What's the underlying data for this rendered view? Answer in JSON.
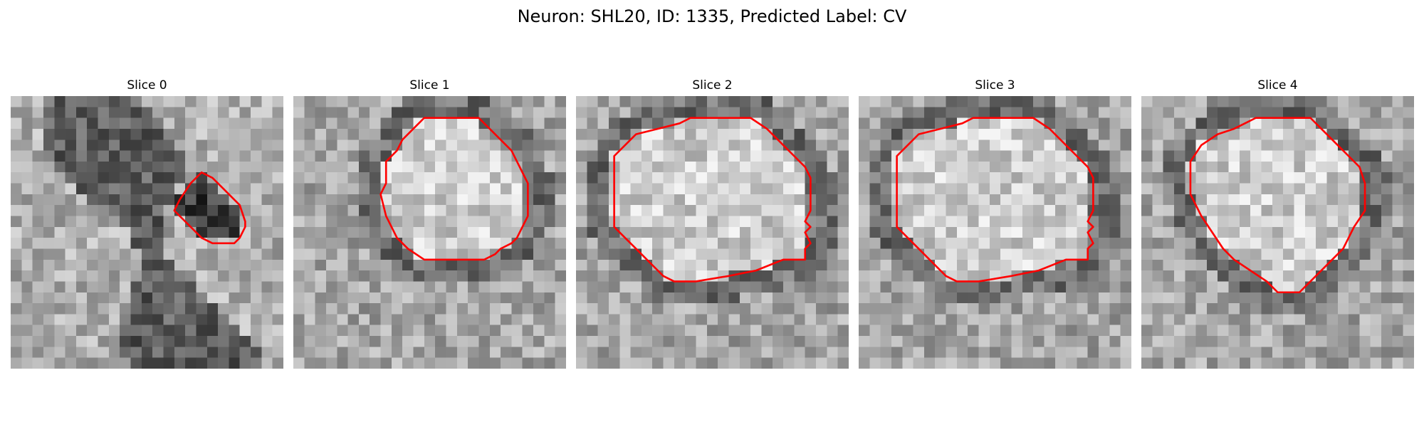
{
  "figure": {
    "title": "Neuron: SHL20, ID: 1335, Predicted Label: CV",
    "outline_color": "#ff0000",
    "colormap": "gray"
  },
  "panels": [
    {
      "title": "Slice 0",
      "contour": [
        [
          17.5,
          7
        ],
        [
          18.5,
          7.5
        ],
        [
          19.5,
          8.5
        ],
        [
          20.5,
          9.5
        ],
        [
          21,
          10
        ],
        [
          21.5,
          11.5
        ],
        [
          21.5,
          12
        ],
        [
          21,
          13
        ],
        [
          20.5,
          13.5
        ],
        [
          18.5,
          13.5
        ],
        [
          17.5,
          13
        ],
        [
          16.5,
          12
        ],
        [
          15.5,
          11
        ],
        [
          15,
          10.5
        ],
        [
          15.5,
          9.5
        ],
        [
          16.5,
          8
        ]
      ]
    },
    {
      "title": "Slice 1",
      "contour": [
        [
          12,
          2
        ],
        [
          17,
          2
        ],
        [
          19.5,
          4.5
        ],
        [
          20,
          5
        ],
        [
          20.5,
          6
        ],
        [
          21,
          7
        ],
        [
          21.5,
          8
        ],
        [
          21.5,
          11
        ],
        [
          21,
          12
        ],
        [
          20.5,
          13
        ],
        [
          20,
          13.5
        ],
        [
          19,
          14
        ],
        [
          18.5,
          14.5
        ],
        [
          17.5,
          15
        ],
        [
          12,
          15
        ],
        [
          10.5,
          14
        ],
        [
          9.5,
          13
        ],
        [
          9,
          12
        ],
        [
          8.5,
          11
        ],
        [
          8,
          9
        ],
        [
          8.5,
          8
        ],
        [
          8.5,
          6
        ],
        [
          9.5,
          5
        ],
        [
          10,
          4
        ],
        [
          11,
          3
        ]
      ]
    },
    {
      "title": "Slice 3",
      "contour": [
        [
          10.5,
          2
        ],
        [
          16,
          2
        ],
        [
          17.5,
          3
        ],
        [
          19,
          4.5
        ],
        [
          20,
          5.5
        ],
        [
          21,
          6.5
        ],
        [
          21.5,
          7.5
        ],
        [
          21.5,
          10.5
        ],
        [
          21,
          11.5
        ],
        [
          21.5,
          12
        ],
        [
          21,
          12.5
        ],
        [
          21.5,
          13.5
        ],
        [
          21,
          14
        ],
        [
          21,
          15
        ],
        [
          19,
          15
        ],
        [
          16.5,
          16
        ],
        [
          14,
          16.5
        ],
        [
          11,
          17
        ],
        [
          9,
          17
        ],
        [
          8,
          16.5
        ],
        [
          7.5,
          16
        ],
        [
          6.5,
          15
        ],
        [
          5.5,
          14
        ],
        [
          4.5,
          13
        ],
        [
          3.5,
          12
        ],
        [
          3.5,
          5.5
        ],
        [
          4.5,
          4.5
        ],
        [
          5.5,
          3.5
        ],
        [
          7.5,
          3
        ],
        [
          9.5,
          2.5
        ]
      ]
    },
    {
      "title": "Slice 2",
      "contour": [
        [
          10.5,
          2
        ],
        [
          16,
          2
        ],
        [
          17.5,
          3
        ],
        [
          19,
          4.5
        ],
        [
          20,
          5.5
        ],
        [
          21,
          6.5
        ],
        [
          21.5,
          7.5
        ],
        [
          21.5,
          10.5
        ],
        [
          21,
          11.5
        ],
        [
          21.5,
          12
        ],
        [
          21,
          12.5
        ],
        [
          21.5,
          13.5
        ],
        [
          21,
          14
        ],
        [
          21,
          15
        ],
        [
          19,
          15
        ],
        [
          16.5,
          16
        ],
        [
          14,
          16.5
        ],
        [
          11,
          17
        ],
        [
          9,
          17
        ],
        [
          8,
          16.5
        ],
        [
          7.5,
          16
        ],
        [
          6.5,
          15
        ],
        [
          5.5,
          14
        ],
        [
          4.5,
          13
        ],
        [
          3.5,
          12
        ],
        [
          3.5,
          5.5
        ],
        [
          4.5,
          4.5
        ],
        [
          5.5,
          3.5
        ],
        [
          7.5,
          3
        ],
        [
          9.5,
          2.5
        ]
      ]
    },
    {
      "title": "Slice 4",
      "contour": [
        [
          10.5,
          2
        ],
        [
          15.5,
          2
        ],
        [
          16.5,
          3
        ],
        [
          18,
          4.5
        ],
        [
          19,
          5.5
        ],
        [
          20,
          6.5
        ],
        [
          20.5,
          8
        ],
        [
          20.5,
          10.5
        ],
        [
          19.5,
          12
        ],
        [
          19,
          13
        ],
        [
          18.5,
          14
        ],
        [
          17,
          15.5
        ],
        [
          16,
          16.5
        ],
        [
          15,
          17.5
        ],
        [
          14.5,
          18
        ],
        [
          12.5,
          18
        ],
        [
          11.5,
          17
        ],
        [
          10,
          16
        ],
        [
          8.5,
          15
        ],
        [
          7.5,
          14
        ],
        [
          6.5,
          12.5
        ],
        [
          5.5,
          11
        ],
        [
          4.5,
          9
        ],
        [
          4.5,
          6
        ],
        [
          5.5,
          4.5
        ],
        [
          7,
          3.5
        ],
        [
          8.5,
          3
        ],
        [
          9.5,
          2.5
        ]
      ]
    }
  ]
}
